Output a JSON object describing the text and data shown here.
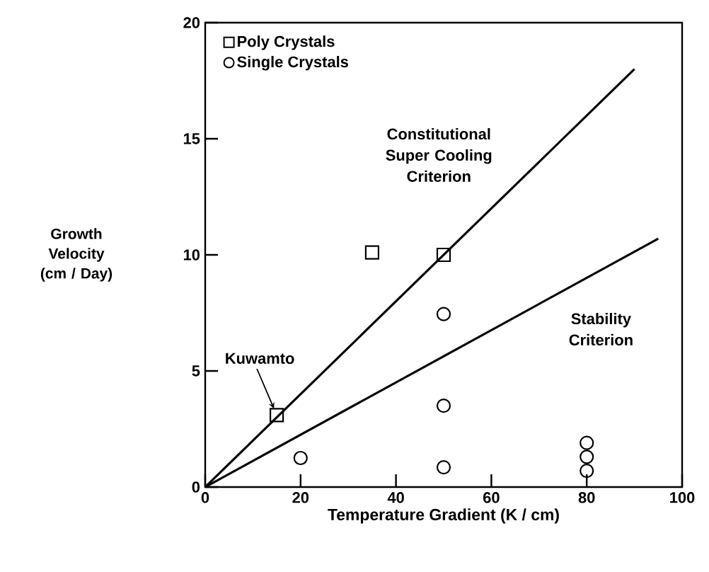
{
  "chart_data": {
    "type": "scatter",
    "xlabel": "Temperature Gradient (K / cm)",
    "ylabel": "Growth Velocity (cm / Day)",
    "xlim": [
      0,
      100
    ],
    "ylim": [
      0,
      20
    ],
    "xticks": [
      0,
      20,
      40,
      60,
      80,
      100
    ],
    "yticks": [
      0,
      5,
      10,
      15,
      20
    ],
    "legend": "top left",
    "series": [
      {
        "name": "Poly Crystals",
        "marker": "square",
        "color": "#000000",
        "x": [
          15,
          35,
          50
        ],
        "values": [
          3.1,
          10.1,
          10
        ]
      },
      {
        "name": "Single Crystals",
        "marker": "circle",
        "color": "#000000",
        "x": [
          20,
          50,
          50,
          50,
          80,
          80,
          80
        ],
        "values": [
          1.25,
          7.45,
          3.5,
          0.85,
          0.7,
          1.3,
          1.9
        ]
      },
      {
        "name": "Constitutional Super Cooling Criterion",
        "type": "line",
        "color": "#000000",
        "x": [
          0,
          90
        ],
        "values": [
          0,
          18
        ]
      },
      {
        "name": "Stability Criterion",
        "type": "line",
        "color": "#000000",
        "x": [
          0,
          95
        ],
        "values": [
          0,
          10.7
        ]
      }
    ],
    "annotations": [
      {
        "text": "Kuwamto",
        "x": 15,
        "y": 3.1
      }
    ]
  }
}
